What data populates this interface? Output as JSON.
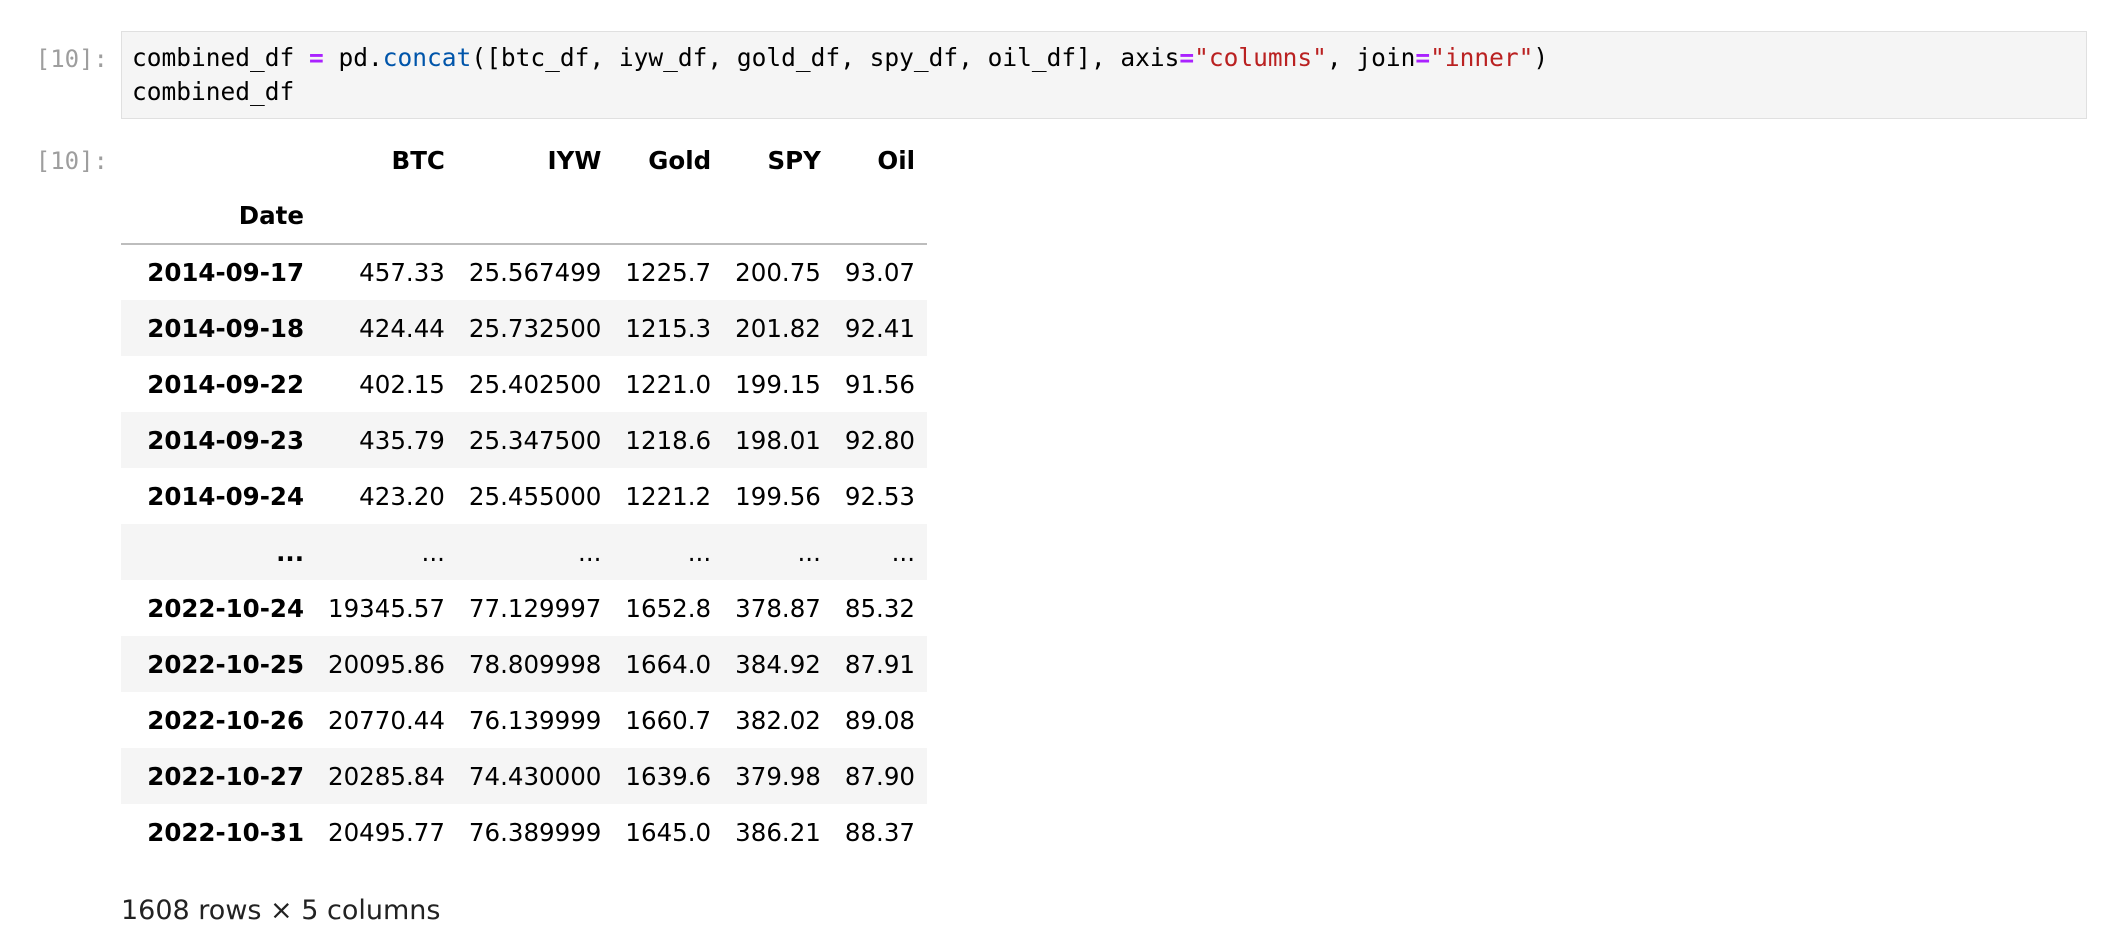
{
  "cell": {
    "in_prompt": "[10]:",
    "out_prompt": "[10]:",
    "code": {
      "line1": {
        "var": "combined_df ",
        "eq": "=",
        "mod": " pd.",
        "func": "concat",
        "args1": "([btc_df, iyw_df, gold_df, spy_df, oil_df], axis",
        "eq2": "=",
        "str1": "\"columns\"",
        "args2": ", join",
        "eq3": "=",
        "str2": "\"inner\"",
        "close": ")"
      },
      "line2": "combined_df"
    }
  },
  "dataframe": {
    "columns": [
      "BTC",
      "IYW",
      "Gold",
      "SPY",
      "Oil"
    ],
    "index_name": "Date",
    "rows": [
      {
        "index": "2014-09-17",
        "values": [
          "457.33",
          "25.567499",
          "1225.7",
          "200.75",
          "93.07"
        ]
      },
      {
        "index": "2014-09-18",
        "values": [
          "424.44",
          "25.732500",
          "1215.3",
          "201.82",
          "92.41"
        ]
      },
      {
        "index": "2014-09-22",
        "values": [
          "402.15",
          "25.402500",
          "1221.0",
          "199.15",
          "91.56"
        ]
      },
      {
        "index": "2014-09-23",
        "values": [
          "435.79",
          "25.347500",
          "1218.6",
          "198.01",
          "92.80"
        ]
      },
      {
        "index": "2014-09-24",
        "values": [
          "423.20",
          "25.455000",
          "1221.2",
          "199.56",
          "92.53"
        ]
      },
      {
        "index": "...",
        "values": [
          "...",
          "...",
          "...",
          "...",
          "..."
        ]
      },
      {
        "index": "2022-10-24",
        "values": [
          "19345.57",
          "77.129997",
          "1652.8",
          "378.87",
          "85.32"
        ]
      },
      {
        "index": "2022-10-25",
        "values": [
          "20095.86",
          "78.809998",
          "1664.0",
          "384.92",
          "87.91"
        ]
      },
      {
        "index": "2022-10-26",
        "values": [
          "20770.44",
          "76.139999",
          "1660.7",
          "382.02",
          "89.08"
        ]
      },
      {
        "index": "2022-10-27",
        "values": [
          "20285.84",
          "74.430000",
          "1639.6",
          "379.98",
          "87.90"
        ]
      },
      {
        "index": "2022-10-31",
        "values": [
          "20495.77",
          "76.389999",
          "1645.0",
          "386.21",
          "88.37"
        ]
      }
    ],
    "shape_text": "1608 rows × 5 columns"
  },
  "colors": {
    "prompt": "#9e9e9e",
    "code_bg": "#f5f5f5",
    "operator": "#aa22ff",
    "function": "#0055aa",
    "string": "#ba2121",
    "stripe": "#f5f5f5"
  }
}
